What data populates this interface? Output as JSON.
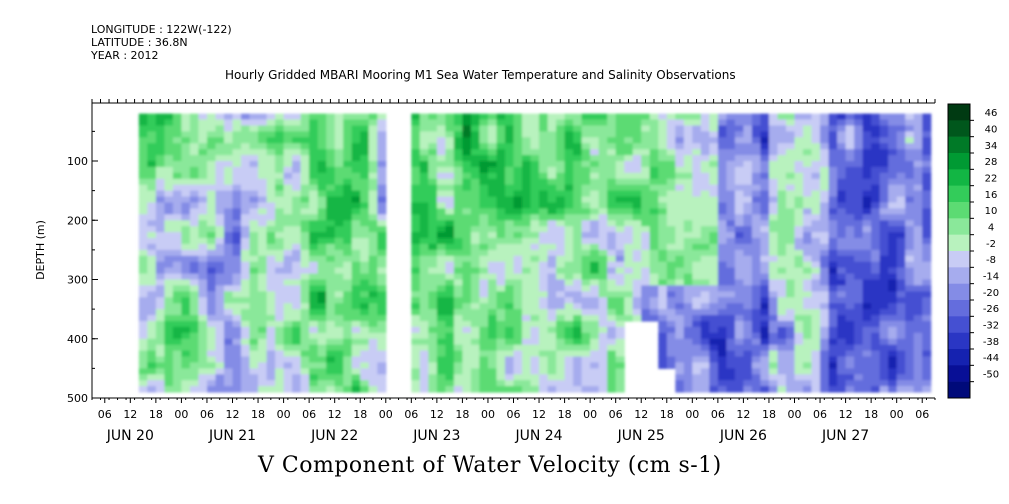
{
  "header": {
    "longitude": "LONGITUDE : 122W(-122)",
    "latitude": "LATITUDE : 36.8N",
    "year": "YEAR : 2012",
    "title": "Hourly Gridded MBARI Mooring M1 Sea Water Temperature and Salinity Observations"
  },
  "chart_data": {
    "type": "heatmap",
    "title": "Hourly Gridded MBARI Mooring M1 Sea Water Temperature and Salinity Observations",
    "variable_title": "V Component of Water Velocity (cm s-1)",
    "xlabel": "",
    "ylabel": "DEPTH (m)",
    "ylim": [
      500,
      0
    ],
    "y_ticks": [
      100,
      200,
      300,
      400,
      500
    ],
    "x_hour_ticks": [
      "06",
      "12",
      "18",
      "00",
      "06",
      "12",
      "18",
      "00",
      "06",
      "12",
      "18",
      "00",
      "06",
      "12",
      "18",
      "00",
      "06",
      "12",
      "18",
      "00",
      "06",
      "12",
      "18",
      "00",
      "06",
      "12",
      "18",
      "00",
      "06",
      "12",
      "18",
      "00",
      "06"
    ],
    "x_day_labels": [
      {
        "label": "JUN 20",
        "day": 20
      },
      {
        "label": "JUN 21",
        "day": 21
      },
      {
        "label": "JUN 22",
        "day": 22
      },
      {
        "label": "JUN 23",
        "day": 23
      },
      {
        "label": "JUN 24",
        "day": 24
      },
      {
        "label": "JUN 25",
        "day": 25
      },
      {
        "label": "JUN 26",
        "day": 26
      },
      {
        "label": "JUN 27",
        "day": 27
      }
    ],
    "colorbar": {
      "labels": [
        "46",
        "40",
        "34",
        "28",
        "22",
        "16",
        "10",
        "4",
        "-2",
        "-8",
        "-14",
        "-20",
        "-26",
        "-32",
        "-38",
        "-44",
        "-50"
      ],
      "colors": [
        "#003a12",
        "#00571c",
        "#007a27",
        "#009a33",
        "#12b644",
        "#33cc5a",
        "#5cdb73",
        "#8ae89a",
        "#b8f2be",
        "#c8ccf5",
        "#a6acee",
        "#848ce6",
        "#646ddd",
        "#4550d2",
        "#2a36c4",
        "#1522b0",
        "#080f96",
        "#000a7a"
      ]
    },
    "data_gap": {
      "start": "JUN 23 00",
      "end": "JUN 23 06"
    },
    "x_range": [
      "JUN 20 03",
      "JUN 27 12"
    ],
    "y_range": [
      20,
      490
    ],
    "grid": false,
    "legend": "right colorbar"
  }
}
